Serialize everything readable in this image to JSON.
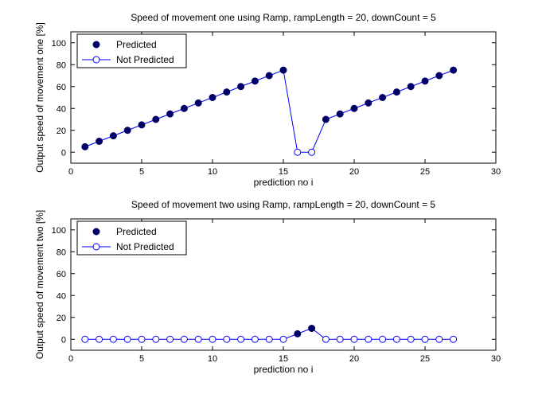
{
  "chart_data": [
    {
      "type": "line",
      "title": "Speed of movement one using Ramp, rampLength = 20, downCount = 5",
      "xlabel": "prediction no i",
      "ylabel": "Output speed of movement one [%]",
      "xlim": [
        0,
        30
      ],
      "ylim": [
        -10,
        110
      ],
      "xticks": [
        "0",
        "5",
        "10",
        "15",
        "20",
        "25",
        "30"
      ],
      "yticks": [
        "0",
        "20",
        "40",
        "60",
        "80",
        "100"
      ],
      "grid": false,
      "legend_position": "top-left",
      "series": [
        {
          "name": "Predicted",
          "color": "#000066",
          "marker": "filled-circle",
          "points": [
            [
              1,
              5
            ],
            [
              2,
              10
            ],
            [
              3,
              15
            ],
            [
              4,
              20
            ],
            [
              5,
              25
            ],
            [
              6,
              30
            ],
            [
              7,
              35
            ],
            [
              8,
              40
            ],
            [
              9,
              45
            ],
            [
              10,
              50
            ],
            [
              11,
              55
            ],
            [
              12,
              60
            ],
            [
              13,
              65
            ],
            [
              14,
              70
            ],
            [
              15,
              75
            ],
            [
              18,
              30
            ],
            [
              19,
              35
            ],
            [
              20,
              40
            ],
            [
              21,
              45
            ],
            [
              22,
              50
            ],
            [
              23,
              55
            ],
            [
              24,
              60
            ],
            [
              25,
              65
            ],
            [
              26,
              70
            ],
            [
              27,
              75
            ]
          ]
        },
        {
          "name": "Not Predicted",
          "color": "#0000ff",
          "marker": "open-circle",
          "points": [
            [
              16,
              0
            ],
            [
              17,
              0
            ]
          ]
        }
      ],
      "line": {
        "color": "#0000ff",
        "x": [
          1,
          2,
          3,
          4,
          5,
          6,
          7,
          8,
          9,
          10,
          11,
          12,
          13,
          14,
          15,
          16,
          17,
          18,
          19,
          20,
          21,
          22,
          23,
          24,
          25,
          26,
          27
        ],
        "y": [
          5,
          10,
          15,
          20,
          25,
          30,
          35,
          40,
          45,
          50,
          55,
          60,
          65,
          70,
          75,
          0,
          0,
          30,
          35,
          40,
          45,
          50,
          55,
          60,
          65,
          70,
          75
        ]
      }
    },
    {
      "type": "line",
      "title": "Speed of movement two using Ramp, rampLength = 20, downCount = 5",
      "xlabel": "prediction no i",
      "ylabel": "Output speed of movement two [%]",
      "xlim": [
        0,
        30
      ],
      "ylim": [
        -10,
        110
      ],
      "xticks": [
        "0",
        "5",
        "10",
        "15",
        "20",
        "25",
        "30"
      ],
      "yticks": [
        "0",
        "20",
        "40",
        "60",
        "80",
        "100"
      ],
      "grid": false,
      "legend_position": "top-left",
      "series": [
        {
          "name": "Predicted",
          "color": "#000066",
          "marker": "filled-circle",
          "points": [
            [
              16,
              5
            ],
            [
              17,
              10
            ]
          ]
        },
        {
          "name": "Not Predicted",
          "color": "#0000ff",
          "marker": "open-circle",
          "points": [
            [
              1,
              0
            ],
            [
              2,
              0
            ],
            [
              3,
              0
            ],
            [
              4,
              0
            ],
            [
              5,
              0
            ],
            [
              6,
              0
            ],
            [
              7,
              0
            ],
            [
              8,
              0
            ],
            [
              9,
              0
            ],
            [
              10,
              0
            ],
            [
              11,
              0
            ],
            [
              12,
              0
            ],
            [
              13,
              0
            ],
            [
              14,
              0
            ],
            [
              15,
              0
            ],
            [
              18,
              0
            ],
            [
              19,
              0
            ],
            [
              20,
              0
            ],
            [
              21,
              0
            ],
            [
              22,
              0
            ],
            [
              23,
              0
            ],
            [
              24,
              0
            ],
            [
              25,
              0
            ],
            [
              26,
              0
            ],
            [
              27,
              0
            ]
          ]
        }
      ],
      "line": {
        "color": "#0000ff",
        "x": [
          1,
          2,
          3,
          4,
          5,
          6,
          7,
          8,
          9,
          10,
          11,
          12,
          13,
          14,
          15,
          16,
          17,
          18,
          19,
          20,
          21,
          22,
          23,
          24,
          25,
          26,
          27
        ],
        "y": [
          0,
          0,
          0,
          0,
          0,
          0,
          0,
          0,
          0,
          0,
          0,
          0,
          0,
          0,
          0,
          5,
          10,
          0,
          0,
          0,
          0,
          0,
          0,
          0,
          0,
          0,
          0
        ]
      }
    }
  ]
}
